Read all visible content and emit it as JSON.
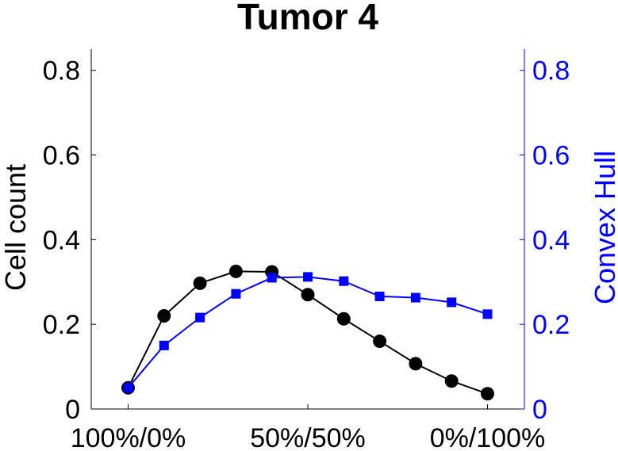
{
  "chart_data": {
    "type": "line",
    "title": "Tumor 4",
    "xlabel": "",
    "ylabel": "Cell count",
    "y2label": "Convex Hull",
    "x": [
      0,
      1,
      2,
      3,
      4,
      5,
      6,
      7,
      8,
      9,
      10
    ],
    "xlim": [
      0,
      10
    ],
    "x_tick_values": [
      0,
      5,
      10
    ],
    "x_tick_labels": [
      "100%/0%",
      "50%/50%",
      "0%/100%"
    ],
    "ylim": [
      0,
      0.85
    ],
    "y2lim": [
      0,
      0.85
    ],
    "y_tick_values": [
      0,
      0.2,
      0.4,
      0.6,
      0.8
    ],
    "y_tick_labels": [
      "0",
      "0.2",
      "0.4",
      "0.6",
      "0.8"
    ],
    "y2_tick_values": [
      0,
      0.2,
      0.4,
      0.6,
      0.8
    ],
    "y2_tick_labels": [
      "0",
      "0.2",
      "0.4",
      "0.6",
      "0.8"
    ],
    "grid": false,
    "legend": "none",
    "series": [
      {
        "axis": "left",
        "marker": "circle",
        "color": "#000000",
        "values": [
          0.05,
          0.22,
          0.297,
          0.325,
          0.324,
          0.27,
          0.213,
          0.16,
          0.107,
          0.066,
          0.036
        ]
      },
      {
        "axis": "right",
        "marker": "square",
        "color": "#0000ff",
        "values": [
          0.05,
          0.15,
          0.216,
          0.272,
          0.31,
          0.312,
          0.302,
          0.266,
          0.263,
          0.252,
          0.224
        ]
      }
    ],
    "colors": {
      "left_axis": "#000000",
      "right_axis": "#0000ff"
    }
  }
}
